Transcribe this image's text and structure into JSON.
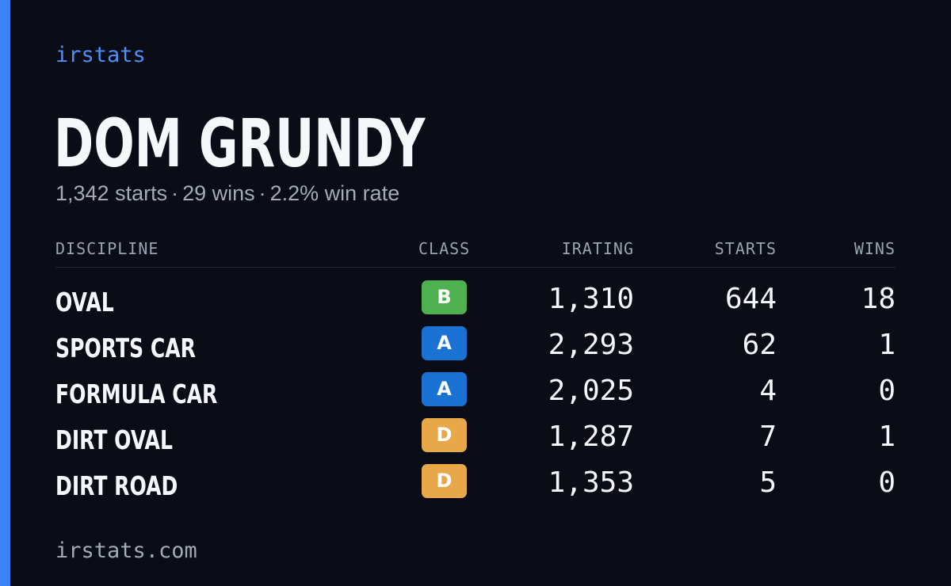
{
  "brand": "irstats",
  "player": {
    "name": "DOM GRUNDY",
    "starts": "1,342 starts",
    "wins": "29 wins",
    "win_rate": "2.2% win rate",
    "separator": "·"
  },
  "table": {
    "headers": {
      "discipline": "DISCIPLINE",
      "class": "CLASS",
      "irating": "IRATING",
      "starts": "STARTS",
      "wins": "WINS"
    },
    "rows": [
      {
        "discipline": "OVAL",
        "class": "B",
        "class_color": "#4fb050",
        "irating": "1,310",
        "starts": "644",
        "wins": "18"
      },
      {
        "discipline": "SPORTS CAR",
        "class": "A",
        "class_color": "#1a73d4",
        "irating": "2,293",
        "starts": "62",
        "wins": "1"
      },
      {
        "discipline": "FORMULA CAR",
        "class": "A",
        "class_color": "#1a73d4",
        "irating": "2,025",
        "starts": "4",
        "wins": "0"
      },
      {
        "discipline": "DIRT OVAL",
        "class": "D",
        "class_color": "#e8a84a",
        "irating": "1,287",
        "starts": "7",
        "wins": "1"
      },
      {
        "discipline": "DIRT ROAD",
        "class": "D",
        "class_color": "#e8a84a",
        "irating": "1,353",
        "starts": "5",
        "wins": "0"
      }
    ]
  },
  "footer": "irstats.com",
  "colors": {
    "background": "#0a0d15",
    "accent": "#3b82f6",
    "brand_text": "#4f8ff7"
  }
}
